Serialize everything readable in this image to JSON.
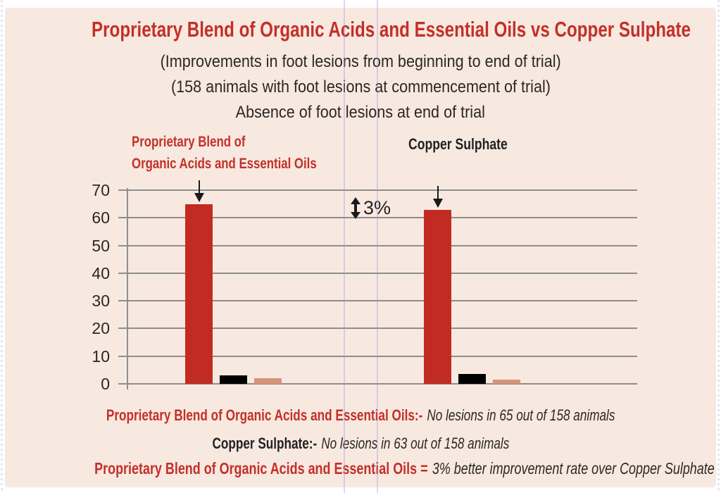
{
  "header": {
    "title": "Proprietary Blend of Organic Acids and Essential Oils vs Copper Sulphate",
    "subtitle_line1": "(Improvements in foot lesions from beginning to end of trial)",
    "subtitle_line2": "(158 animals with foot lesions at commencement of trial)",
    "subtitle_line3": "Absence of foot lesions at end of trial"
  },
  "chart_data": {
    "type": "bar",
    "title": "Absence of foot lesions at end of trial",
    "xlabel": "",
    "ylabel": "",
    "ylim": [
      0,
      70
    ],
    "yticks": [
      0,
      10,
      20,
      30,
      40,
      50,
      60,
      70
    ],
    "grid": true,
    "legend": "none",
    "bar_colors": [
      "#c12b22",
      "#000000",
      "#d6937a"
    ],
    "groups": [
      {
        "label": "Proprietary Blend of Organic Acids and Essential Oils",
        "label_lines": [
          "Proprietary Blend of",
          "Organic Acids and Essential Oils"
        ],
        "label_color": "#c3302a",
        "values": [
          65,
          3,
          2
        ],
        "arrow": "down"
      },
      {
        "label": "Copper Sulphate",
        "label_lines": [
          "Copper Sulphate"
        ],
        "label_color": "#222222",
        "values": [
          63,
          3.5,
          1.5
        ],
        "arrow": "down"
      }
    ],
    "annotation": {
      "symbol": "updown-arrow",
      "text": "3%"
    }
  },
  "captions": [
    {
      "lead": "Proprietary Blend of Organic Acids and Essential Oils:-",
      "lead_color": "#c3302a",
      "text": "No lesions in 65 out of 158 animals"
    },
    {
      "lead": "Copper Sulphate:-",
      "lead_color": "#222222",
      "text": "No lesions in 63 out of 158 animals"
    },
    {
      "lead": "Proprietary Blend of Organic Acids and Essential Oils =",
      "lead_color": "#c3302a",
      "text": "3% better improvement rate over Copper Sulphate"
    }
  ],
  "colors": {
    "background": "#ffffff",
    "panel": "#f8e9e0",
    "accent_red": "#c3302a",
    "bar_red": "#c12b22",
    "bar_black": "#000000",
    "bar_tan": "#d6937a",
    "gridline": "#8d8d8d",
    "text": "#2b2724",
    "fold_line": "#a896d7"
  }
}
